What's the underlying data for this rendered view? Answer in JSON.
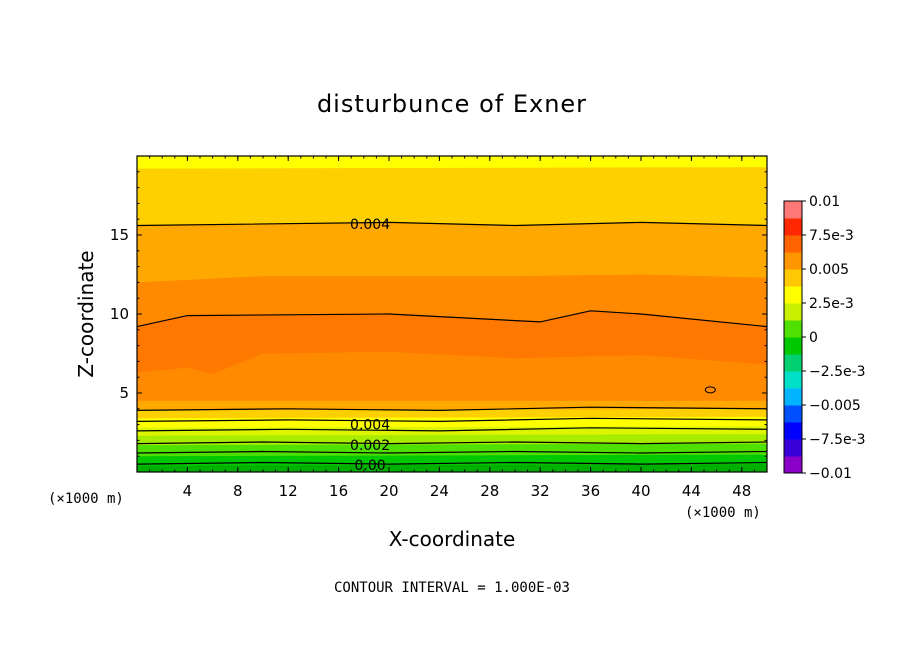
{
  "chart_data": {
    "type": "contour",
    "title": "disturbunce of Exner",
    "xlabel": "X-coordinate",
    "ylabel": "Z-coordinate",
    "x_units": "(×1000 m)",
    "x_units_left": "(×1000 m)",
    "xlim": [
      0,
      50
    ],
    "ylim": [
      0,
      20
    ],
    "x_ticks": [
      "4",
      "8",
      "12",
      "16",
      "20",
      "24",
      "28",
      "32",
      "36",
      "40",
      "44",
      "48"
    ],
    "y_ticks": [
      "5",
      "10",
      "15"
    ],
    "colorbar": {
      "labels": [
        "0.01",
        "7.5e-3",
        "0.005",
        "2.5e-3",
        "0",
        "-2.5e-3",
        "-0.005",
        "-7.5e-3",
        "-0.01"
      ],
      "min": -0.01,
      "max": 0.01,
      "interval": 0.00125,
      "colors": [
        "#8a00c8",
        "#3a00d8",
        "#0000ff",
        "#0050ff",
        "#00b4ff",
        "#00e0c8",
        "#00d070",
        "#00c800",
        "#50e000",
        "#c8f000",
        "#ffff00",
        "#ffc800",
        "#ff9600",
        "#ff6400",
        "#ff2800",
        "#ff7878"
      ]
    },
    "contour_labels": [
      "0.004",
      "0.004",
      "0.002",
      "0.00"
    ],
    "footer": "CONTOUR INTERVAL = 1.000E-03",
    "bands": [
      {
        "value": 0.00075,
        "color": "#00c800",
        "z": [
          [
            0,
            0.4
          ],
          [
            50,
            0.5
          ]
        ]
      },
      {
        "value": 0.0015,
        "color": "#50e000",
        "z": [
          [
            0,
            1.0
          ],
          [
            50,
            1.1
          ]
        ]
      },
      {
        "value": 0.002,
        "color": "#a8ec00",
        "z": [
          [
            0,
            1.7
          ],
          [
            50,
            1.8
          ]
        ]
      },
      {
        "value": 0.0025,
        "color": "#ddf500",
        "z": [
          [
            0,
            2.3
          ],
          [
            50,
            2.4
          ]
        ]
      },
      {
        "value": 0.003,
        "color": "#ffff00",
        "z": [
          [
            0,
            2.8
          ],
          [
            50,
            2.9
          ]
        ]
      },
      {
        "value": 0.0035,
        "color": "#ffd000",
        "z": [
          [
            0,
            3.4
          ],
          [
            50,
            3.5
          ]
        ]
      },
      {
        "value": 0.0045,
        "color": "#ffa800",
        "z": [
          [
            0,
            3.9
          ],
          [
            50,
            4.0
          ]
        ]
      },
      {
        "value": 0.0055,
        "color": "#ff8a00",
        "z": [
          [
            0,
            4.5
          ],
          [
            50,
            4.5
          ]
        ]
      },
      {
        "value": 0.0065,
        "color": "#ff7800",
        "z": [
          [
            0,
            6.3
          ],
          [
            4,
            6.6
          ],
          [
            6,
            6.2
          ],
          [
            10,
            7.5
          ],
          [
            20,
            7.6
          ],
          [
            30,
            7.2
          ],
          [
            40,
            7.4
          ],
          [
            50,
            6.8
          ]
        ]
      },
      {
        "value": 0.0055,
        "color": "#ff8a00",
        "z": [
          [
            0,
            9.2
          ],
          [
            4,
            9.9
          ],
          [
            20,
            10.0
          ],
          [
            32,
            9.5
          ],
          [
            36,
            10.2
          ],
          [
            40,
            10.0
          ],
          [
            50,
            9.2
          ]
        ]
      },
      {
        "value": 0.0045,
        "color": "#ffa800",
        "z": [
          [
            0,
            12.0
          ],
          [
            10,
            12.4
          ],
          [
            30,
            12.4
          ],
          [
            40,
            12.5
          ],
          [
            50,
            12.3
          ]
        ]
      },
      {
        "value": 0.0035,
        "color": "#ffd000",
        "z": [
          [
            0,
            15.6
          ],
          [
            20,
            15.8
          ],
          [
            30,
            15.6
          ],
          [
            40,
            15.8
          ],
          [
            50,
            15.6
          ]
        ]
      },
      {
        "value": 0.003,
        "color": "#ffff00",
        "z": [
          [
            0,
            19.2
          ],
          [
            50,
            19.3
          ]
        ]
      }
    ],
    "contours": [
      {
        "value": 0.0,
        "z": [
          [
            0,
            0.5
          ],
          [
            10,
            0.6
          ],
          [
            20,
            0.5
          ],
          [
            30,
            0.6
          ],
          [
            40,
            0.5
          ],
          [
            50,
            0.6
          ]
        ]
      },
      {
        "value": 0.001,
        "z": [
          [
            0,
            1.2
          ],
          [
            10,
            1.3
          ],
          [
            20,
            1.2
          ],
          [
            30,
            1.3
          ],
          [
            40,
            1.2
          ],
          [
            50,
            1.3
          ]
        ]
      },
      {
        "value": 0.002,
        "z": [
          [
            0,
            1.8
          ],
          [
            10,
            1.9
          ],
          [
            20,
            1.8
          ],
          [
            30,
            1.9
          ],
          [
            40,
            1.8
          ],
          [
            50,
            1.9
          ]
        ]
      },
      {
        "value": 0.003,
        "z": [
          [
            0,
            2.6
          ],
          [
            12,
            2.7
          ],
          [
            24,
            2.6
          ],
          [
            36,
            2.8
          ],
          [
            50,
            2.7
          ]
        ]
      },
      {
        "value": 0.004,
        "z": [
          [
            0,
            3.2
          ],
          [
            12,
            3.3
          ],
          [
            24,
            3.2
          ],
          [
            36,
            3.4
          ],
          [
            50,
            3.3
          ]
        ]
      },
      {
        "value": 0.005,
        "z": [
          [
            0,
            3.9
          ],
          [
            12,
            4.0
          ],
          [
            24,
            3.9
          ],
          [
            36,
            4.1
          ],
          [
            50,
            4.0
          ]
        ]
      },
      {
        "value": 0.005,
        "z": [
          [
            0,
            9.2
          ],
          [
            4,
            9.9
          ],
          [
            20,
            10.0
          ],
          [
            32,
            9.5
          ],
          [
            36,
            10.2
          ],
          [
            40,
            10.0
          ],
          [
            50,
            9.2
          ]
        ]
      },
      {
        "value": 0.004,
        "z": [
          [
            0,
            15.6
          ],
          [
            20,
            15.8
          ],
          [
            30,
            15.6
          ],
          [
            40,
            15.8
          ],
          [
            50,
            15.6
          ]
        ]
      }
    ]
  }
}
